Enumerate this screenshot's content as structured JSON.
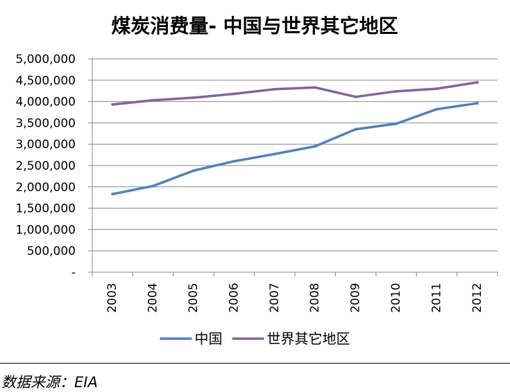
{
  "chart_data": {
    "type": "line",
    "title": "煤炭消费量- 中国与世界其它地区",
    "categories": [
      "2003",
      "2004",
      "2005",
      "2006",
      "2007",
      "2008",
      "2009",
      "2010",
      "2011",
      "2012"
    ],
    "series": [
      {
        "name": "中国",
        "color": "#4f81bd",
        "values": [
          1830000,
          2020000,
          2380000,
          2600000,
          2770000,
          2950000,
          3350000,
          3480000,
          3820000,
          3960000
        ]
      },
      {
        "name": "世界其它地区",
        "color": "#8064a2",
        "values": [
          3930000,
          4030000,
          4090000,
          4180000,
          4290000,
          4330000,
          4110000,
          4240000,
          4300000,
          4450000
        ]
      }
    ],
    "ylim": [
      0,
      5000000
    ],
    "ytick_labels": [
      "-",
      "500,000",
      "1,000,000",
      "1,500,000",
      "2,000,000",
      "2,500,000",
      "3,000,000",
      "3,500,000",
      "4,000,000",
      "4,500,000",
      "5,000,000"
    ],
    "grid": true,
    "legend_position": "bottom"
  },
  "source_note": "数据来源：EIA"
}
